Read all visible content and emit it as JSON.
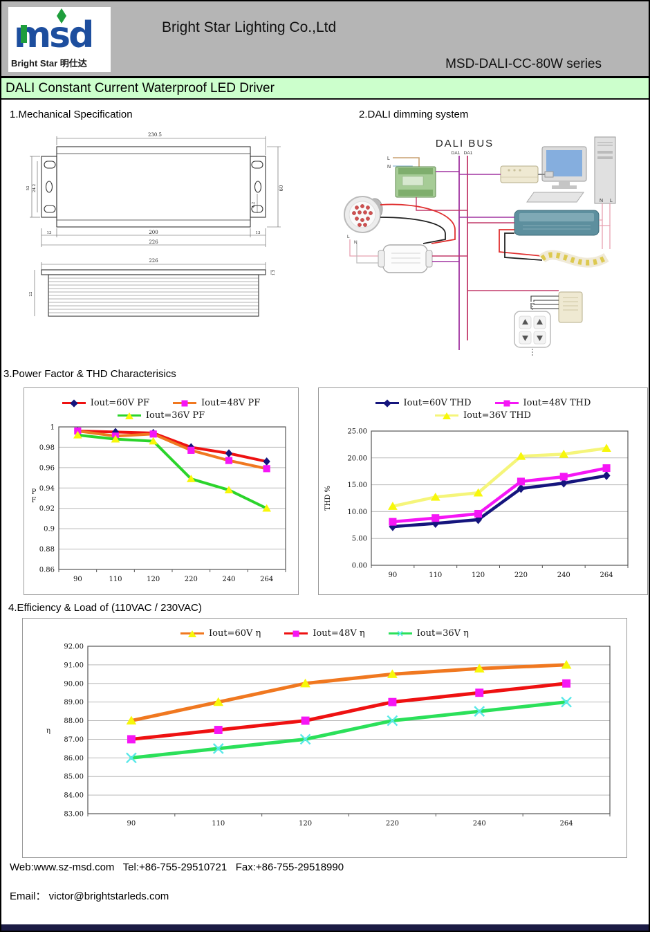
{
  "header": {
    "company": "Bright Star Lighting Co.,Ltd",
    "series": "MSD-DALI-CC-80W series",
    "logo_text": "msd",
    "logo_subtext": "Bright Star 明仕达"
  },
  "title_bar": {
    "text": "DALI Constant Current Waterproof LED Driver"
  },
  "colors": {
    "header_gray": "#b5b5b5",
    "title_bar_green": "#ccffcc",
    "bottom_bar_navy": "#1c1c45",
    "logo_blue": "#1d4e9e",
    "logo_green": "#1f9e3c",
    "dali_bus_purple": "#a033a0",
    "dali_bus_crimson": "#c23a6a"
  },
  "sections": {
    "mechanical": {
      "title": "1.Mechanical Specification",
      "dims": {
        "overall_width": "230.5",
        "body_width": "200",
        "total_width": "226",
        "side_left": "13",
        "side_right": "13",
        "height": "60",
        "hole": "4.2",
        "bracket_outer": "52",
        "bracket_inner": "24.2",
        "bottom_width": "226",
        "depth": "22",
        "flange": "1.5"
      }
    },
    "dali": {
      "title": "2.DALI dimming system",
      "bus_label": "DALI BUS",
      "bus_wire_left": "DA1",
      "bus_wire_right": "DA1",
      "label_l": "L",
      "label_n": "N",
      "label_n2": "N",
      "label_l2": "L",
      "driver_label_l": "L",
      "driver_label_n": "N"
    },
    "pf_thd": {
      "title": "3.Power Factor & THD Characterisics"
    },
    "efficiency": {
      "title": "4.Efficiency & Load of (110VAC / 230VAC)"
    }
  },
  "footer": {
    "line1": "Web:www.sz-msd.com   Tel:+86-755-29510721   Fax:+86-755-29518990",
    "line2": "Email： victor@brightstarleds.com"
  },
  "chart_data": [
    {
      "id": "pf",
      "type": "line",
      "title": "Power Factor vs input voltage",
      "categories": [
        "90",
        "110",
        "120",
        "220",
        "240",
        "264"
      ],
      "xlabel": "",
      "ylabel": "PF",
      "ylim": [
        0.86,
        1.0
      ],
      "yticks": [
        "1",
        "0.98",
        "0.96",
        "0.94",
        "0.92",
        "0.9",
        "0.88",
        "0.86"
      ],
      "grid": true,
      "legend_position": "top",
      "series": [
        {
          "name": "Iout=60V PF",
          "values": [
            0.996,
            0.995,
            0.994,
            0.98,
            0.974,
            0.966
          ],
          "line_color": "#ee1111",
          "marker": "diamond",
          "marker_color": "#14147d"
        },
        {
          "name": "Iout=48V PF",
          "values": [
            0.996,
            0.991,
            0.993,
            0.977,
            0.967,
            0.959
          ],
          "line_color": "#f07820",
          "marker": "square",
          "marker_color": "#f516f5"
        },
        {
          "name": "Iout=36V PF",
          "values": [
            0.992,
            0.988,
            0.986,
            0.949,
            0.938,
            0.92
          ],
          "line_color": "#2bd42b",
          "marker": "triangle",
          "marker_color": "#f7f70a"
        }
      ]
    },
    {
      "id": "thd",
      "type": "line",
      "title": "THD vs input voltage",
      "categories": [
        "90",
        "110",
        "120",
        "220",
        "240",
        "264"
      ],
      "xlabel": "",
      "ylabel": "THD %",
      "ylim": [
        0,
        25
      ],
      "yticks": [
        "25.00",
        "20.00",
        "15.00",
        "10.00",
        "5.00",
        "0.00"
      ],
      "grid": true,
      "legend_position": "top",
      "series": [
        {
          "name": "Iout=60V THD",
          "values": [
            7.2,
            7.8,
            8.5,
            14.3,
            15.3,
            16.7
          ],
          "line_color": "#15157d",
          "marker": "diamond",
          "marker_color": "#15157d"
        },
        {
          "name": "Iout=48V THD",
          "values": [
            8.1,
            8.8,
            9.6,
            15.6,
            16.5,
            18.1
          ],
          "line_color": "#f516f5",
          "marker": "square",
          "marker_color": "#f516f5"
        },
        {
          "name": "Iout=36V THD",
          "values": [
            11.0,
            12.7,
            13.5,
            20.3,
            20.7,
            21.8
          ],
          "line_color": "#f5f57a",
          "marker": "triangle",
          "marker_color": "#f7f70a"
        }
      ]
    },
    {
      "id": "efficiency",
      "type": "line",
      "title": "Efficiency vs input voltage",
      "categories": [
        "90",
        "110",
        "120",
        "220",
        "240",
        "264"
      ],
      "xlabel": "",
      "ylabel": "η",
      "ylim": [
        83,
        92
      ],
      "yticks": [
        "92.00",
        "91.00",
        "90.00",
        "89.00",
        "88.00",
        "87.00",
        "86.00",
        "85.00",
        "84.00",
        "83.00"
      ],
      "grid": true,
      "legend_position": "top",
      "series": [
        {
          "name": "Iout=60V  η",
          "values": [
            88.0,
            89.0,
            90.0,
            90.5,
            90.8,
            91.0
          ],
          "line_color": "#f07820",
          "marker": "triangle",
          "marker_color": "#f7f70a"
        },
        {
          "name": "Iout=48V  η",
          "values": [
            87.0,
            87.5,
            88.0,
            89.0,
            89.5,
            90.0
          ],
          "line_color": "#ee1111",
          "marker": "square",
          "marker_color": "#f516f5"
        },
        {
          "name": "Iout=36V  η",
          "values": [
            86.0,
            86.5,
            87.0,
            88.0,
            88.5,
            89.0
          ],
          "line_color": "#2be05a",
          "marker": "x",
          "marker_color": "#58e8e8"
        }
      ]
    }
  ]
}
